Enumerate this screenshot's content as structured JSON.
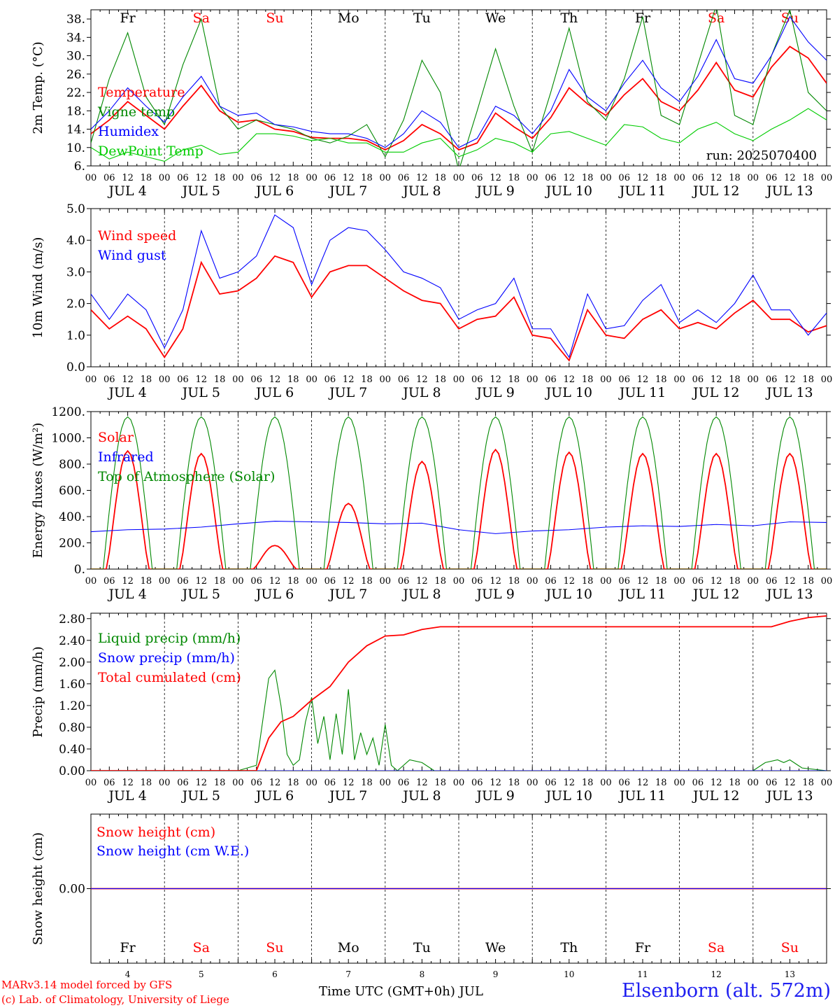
{
  "colors": {
    "red": "#ff0000",
    "green": "#008800",
    "blue": "#0000ff",
    "lightgreen": "#00cc00",
    "weekday_default": "#000000",
    "weekday_weekend": "#ff0000"
  },
  "footer": {
    "model": "MARv3.14 model forced by GFS",
    "lab": "(c) Lab. of Climatology, University of Liege",
    "time_label": "Time UTC (GMT+0h) JUL",
    "station": "Elsenborn (alt. 572m)"
  },
  "chart_data": [
    {
      "type": "line",
      "ylabel": "2m Temp. (°C)",
      "ylim": [
        6,
        40
      ],
      "yticks": [
        "6.",
        "10.",
        "14.",
        "18.",
        "22.",
        "26.",
        "30.",
        "34.",
        "38."
      ],
      "annotation": "run: 2025070400",
      "weekdays": [
        "Fr",
        "Sa",
        "Su",
        "Mo",
        "Tu",
        "We",
        "Th",
        "Fr",
        "Sa",
        "Su"
      ],
      "hour_ticks": [
        "00",
        "06",
        "12",
        "18"
      ],
      "dates": [
        "JUL 4",
        "JUL 5",
        "JUL 6",
        "JUL 7",
        "JUL 8",
        "JUL 9",
        "JUL 10",
        "JUL 11",
        "JUL 12",
        "JUL 13"
      ],
      "x_unit": "hours since JUL 4 00 UTC",
      "series": [
        {
          "name": "Temperature",
          "color": "red",
          "x": [
            0,
            6,
            12,
            18,
            24,
            30,
            36,
            42,
            48,
            54,
            60,
            66,
            72,
            78,
            84,
            90,
            96,
            102,
            108,
            114,
            120,
            126,
            132,
            138,
            144,
            150,
            156,
            162,
            168,
            174,
            180,
            186,
            192,
            198,
            204,
            210,
            216,
            222,
            228,
            234,
            240
          ],
          "y": [
            13,
            16,
            20,
            17,
            14,
            19,
            23.5,
            18,
            15.5,
            16,
            14,
            13.5,
            12.2,
            12,
            12,
            11.5,
            9.5,
            11.5,
            15,
            13,
            9.5,
            11,
            17.5,
            14.5,
            12,
            16.5,
            23,
            19.5,
            17,
            21.5,
            25,
            20,
            18,
            22.5,
            28.5,
            22.5,
            21,
            27.5,
            32,
            29.5,
            24
          ]
        },
        {
          "name": "Vigne temp",
          "color": "green",
          "x": [
            0,
            6,
            12,
            18,
            24,
            30,
            36,
            42,
            48,
            54,
            60,
            66,
            72,
            78,
            84,
            90,
            96,
            102,
            108,
            114,
            120,
            126,
            132,
            138,
            144,
            150,
            156,
            162,
            168,
            174,
            180,
            186,
            192,
            198,
            204,
            210,
            216,
            222,
            228,
            234,
            240
          ],
          "y": [
            11,
            25,
            35,
            21,
            15,
            28,
            38,
            19,
            14,
            16,
            15,
            14,
            12,
            11,
            12.5,
            15,
            8,
            16,
            29,
            22,
            5,
            18,
            31.5,
            19,
            9,
            22,
            36,
            20,
            16,
            25,
            38.5,
            17,
            15,
            28,
            41,
            17,
            15,
            30,
            40,
            22,
            18
          ]
        },
        {
          "name": "Humidex",
          "color": "blue",
          "x": [
            0,
            6,
            12,
            18,
            24,
            30,
            36,
            42,
            48,
            54,
            60,
            66,
            72,
            78,
            84,
            90,
            96,
            102,
            108,
            114,
            120,
            126,
            132,
            138,
            144,
            150,
            156,
            162,
            168,
            174,
            180,
            186,
            192,
            198,
            204,
            210,
            216,
            222,
            228,
            234,
            240
          ],
          "y": [
            14,
            18,
            23,
            19,
            15.5,
            21,
            25.5,
            19,
            17,
            17.5,
            15,
            14.5,
            13.5,
            13,
            13,
            12,
            10,
            13,
            18,
            15.5,
            10,
            12,
            19,
            17,
            13,
            18,
            27,
            21,
            18,
            24,
            29,
            23,
            20,
            25.5,
            33.5,
            25,
            24,
            30,
            38.5,
            33,
            29
          ]
        },
        {
          "name": "DewPoint Temp",
          "color": "lightgreen",
          "x": [
            0,
            6,
            12,
            18,
            24,
            30,
            36,
            42,
            48,
            54,
            60,
            66,
            72,
            78,
            84,
            90,
            96,
            102,
            108,
            114,
            120,
            126,
            132,
            138,
            144,
            150,
            156,
            162,
            168,
            174,
            180,
            186,
            192,
            198,
            204,
            210,
            216,
            222,
            228,
            234,
            240
          ],
          "y": [
            10,
            7.5,
            9,
            8,
            7,
            9.5,
            10.5,
            8.5,
            9,
            13,
            13,
            12.5,
            11.5,
            12,
            11,
            11,
            9,
            9,
            11,
            12,
            8,
            9.5,
            12,
            11,
            9,
            13,
            13.5,
            12,
            10.5,
            15,
            14.5,
            12,
            11,
            14,
            15.5,
            13,
            11.5,
            14,
            16,
            18.5,
            16
          ]
        }
      ]
    },
    {
      "type": "line",
      "ylabel": "10m Wind (m/s)",
      "ylim": [
        0,
        5
      ],
      "yticks": [
        "0.0",
        "1.0",
        "2.0",
        "3.0",
        "4.0",
        "5.0"
      ],
      "dates": [
        "JUL 4",
        "JUL 5",
        "JUL 6",
        "JUL 7",
        "JUL 8",
        "JUL 9",
        "JUL 10",
        "JUL 11",
        "JUL 12",
        "JUL 13"
      ],
      "hour_ticks": [
        "00",
        "06",
        "12",
        "18"
      ],
      "x_unit": "hours since JUL 4 00 UTC",
      "series": [
        {
          "name": "Wind speed",
          "color": "red",
          "x": [
            0,
            6,
            12,
            18,
            24,
            30,
            36,
            42,
            48,
            54,
            60,
            66,
            72,
            78,
            84,
            90,
            96,
            102,
            108,
            114,
            120,
            126,
            132,
            138,
            144,
            150,
            156,
            162,
            168,
            174,
            180,
            186,
            192,
            198,
            204,
            210,
            216,
            222,
            228,
            234,
            240
          ],
          "y": [
            1.8,
            1.2,
            1.6,
            1.2,
            0.3,
            1.2,
            3.3,
            2.3,
            2.4,
            2.8,
            3.5,
            3.3,
            2.2,
            3.0,
            3.2,
            3.2,
            2.8,
            2.4,
            2.1,
            2.0,
            1.2,
            1.5,
            1.6,
            2.2,
            1.0,
            0.9,
            0.2,
            1.8,
            1.0,
            0.9,
            1.5,
            1.8,
            1.2,
            1.4,
            1.2,
            1.7,
            2.1,
            1.5,
            1.5,
            1.1,
            1.3
          ]
        },
        {
          "name": "Wind gust",
          "color": "blue",
          "x": [
            0,
            6,
            12,
            18,
            24,
            30,
            36,
            42,
            48,
            54,
            60,
            66,
            72,
            78,
            84,
            90,
            96,
            102,
            108,
            114,
            120,
            126,
            132,
            138,
            144,
            150,
            156,
            162,
            168,
            174,
            180,
            186,
            192,
            198,
            204,
            210,
            216,
            222,
            228,
            234,
            240
          ],
          "y": [
            2.3,
            1.5,
            2.3,
            1.8,
            0.6,
            1.8,
            4.3,
            2.8,
            3.0,
            3.5,
            4.8,
            4.4,
            2.6,
            4.0,
            4.4,
            4.3,
            3.7,
            3.0,
            2.8,
            2.5,
            1.5,
            1.8,
            2.0,
            2.8,
            1.2,
            1.2,
            0.3,
            2.3,
            1.2,
            1.3,
            2.1,
            2.6,
            1.4,
            1.8,
            1.4,
            2.0,
            2.9,
            1.8,
            1.8,
            1.0,
            1.7
          ]
        }
      ]
    },
    {
      "type": "line",
      "ylabel": "Energy fluxes (W/m²)",
      "ylim": [
        0,
        1200
      ],
      "yticks": [
        "0.",
        "200.",
        "400.",
        "600.",
        "800.",
        "1000.",
        "1200."
      ],
      "dates": [
        "JUL 4",
        "JUL 5",
        "JUL 6",
        "JUL 7",
        "JUL 8",
        "JUL 9",
        "JUL 10",
        "JUL 11",
        "JUL 12",
        "JUL 13"
      ],
      "hour_ticks": [
        "00",
        "06",
        "12",
        "18"
      ],
      "x_unit": "hours since JUL 4 00 UTC",
      "solar_peaks": [
        900,
        880,
        180,
        500,
        820,
        910,
        890,
        880,
        880,
        880
      ],
      "toa_peak": 1160,
      "series": [
        {
          "name": "Solar",
          "color": "red"
        },
        {
          "name": "Infrared",
          "color": "blue",
          "x": [
            0,
            12,
            24,
            36,
            48,
            60,
            72,
            84,
            96,
            108,
            120,
            132,
            144,
            156,
            168,
            180,
            192,
            204,
            216,
            228,
            240
          ],
          "y": [
            285,
            300,
            305,
            320,
            345,
            365,
            360,
            355,
            345,
            350,
            300,
            270,
            290,
            300,
            320,
            330,
            325,
            340,
            330,
            360,
            355
          ]
        },
        {
          "name": "Top of Atmosphere (Solar)",
          "color": "green"
        }
      ]
    },
    {
      "type": "line",
      "ylabel": "Precip (mm/h)",
      "ylim": [
        0,
        2.9
      ],
      "yticks": [
        "0.00",
        "0.40",
        "0.80",
        "1.20",
        "1.60",
        "2.00",
        "2.40",
        "2.80"
      ],
      "dates": [
        "JUL 4",
        "JUL 5",
        "JUL 6",
        "JUL 7",
        "JUL 8",
        "JUL 9",
        "JUL 10",
        "JUL 11",
        "JUL 12",
        "JUL 13"
      ],
      "hour_ticks": [
        "00",
        "06",
        "12",
        "18"
      ],
      "x_unit": "hours since JUL 4 00 UTC",
      "series": [
        {
          "name": "Liquid precip (mm/h)",
          "color": "green",
          "x": [
            0,
            48,
            54,
            58,
            60,
            62,
            64,
            66,
            68,
            70,
            72,
            74,
            76,
            78,
            80,
            82,
            84,
            86,
            88,
            90,
            92,
            94,
            96,
            98,
            100,
            104,
            108,
            112,
            116,
            120,
            216,
            220,
            224,
            226,
            228,
            232,
            240
          ],
          "y": [
            0,
            0,
            0.1,
            1.7,
            1.85,
            1.2,
            0.3,
            0.1,
            0.2,
            0.9,
            1.35,
            0.5,
            1.0,
            0.2,
            1.05,
            0.3,
            1.5,
            0.2,
            0.7,
            0.3,
            0.6,
            0.1,
            0.85,
            0.1,
            0,
            0.2,
            0.15,
            0,
            0,
            0,
            0,
            0.15,
            0.2,
            0.15,
            0.2,
            0.05,
            0
          ]
        },
        {
          "name": "Snow precip (mm/h)",
          "color": "blue",
          "x": [
            0,
            240
          ],
          "y": [
            0,
            0
          ]
        },
        {
          "name": "Total cumulated (cm)",
          "color": "red",
          "x": [
            0,
            48,
            54,
            58,
            62,
            66,
            70,
            72,
            78,
            84,
            90,
            96,
            102,
            108,
            114,
            120,
            216,
            222,
            228,
            234,
            240
          ],
          "y": [
            0,
            0,
            0,
            0.6,
            0.9,
            1.0,
            1.2,
            1.3,
            1.55,
            2.0,
            2.3,
            2.48,
            2.5,
            2.6,
            2.65,
            2.65,
            2.65,
            2.65,
            2.75,
            2.82,
            2.85
          ]
        }
      ]
    },
    {
      "type": "line",
      "ylabel": "Snow height (cm)",
      "ylim": [
        -1,
        1
      ],
      "yticks": [
        "0.00"
      ],
      "weekdays": [
        "Fr",
        "Sa",
        "Su",
        "Mo",
        "Tu",
        "We",
        "Th",
        "Fr",
        "Sa",
        "Su"
      ],
      "day_numbers": [
        "4",
        "5",
        "6",
        "7",
        "8",
        "9",
        "10",
        "11",
        "12",
        "13"
      ],
      "x_unit": "hours since JUL 4 00 UTC",
      "series": [
        {
          "name": "Snow height (cm)",
          "color": "red",
          "x": [
            0,
            240
          ],
          "y": [
            0,
            0
          ]
        },
        {
          "name": "Snow height (cm W.E.)",
          "color": "blue",
          "x": [
            0,
            240
          ],
          "y": [
            0,
            0
          ]
        }
      ]
    }
  ]
}
